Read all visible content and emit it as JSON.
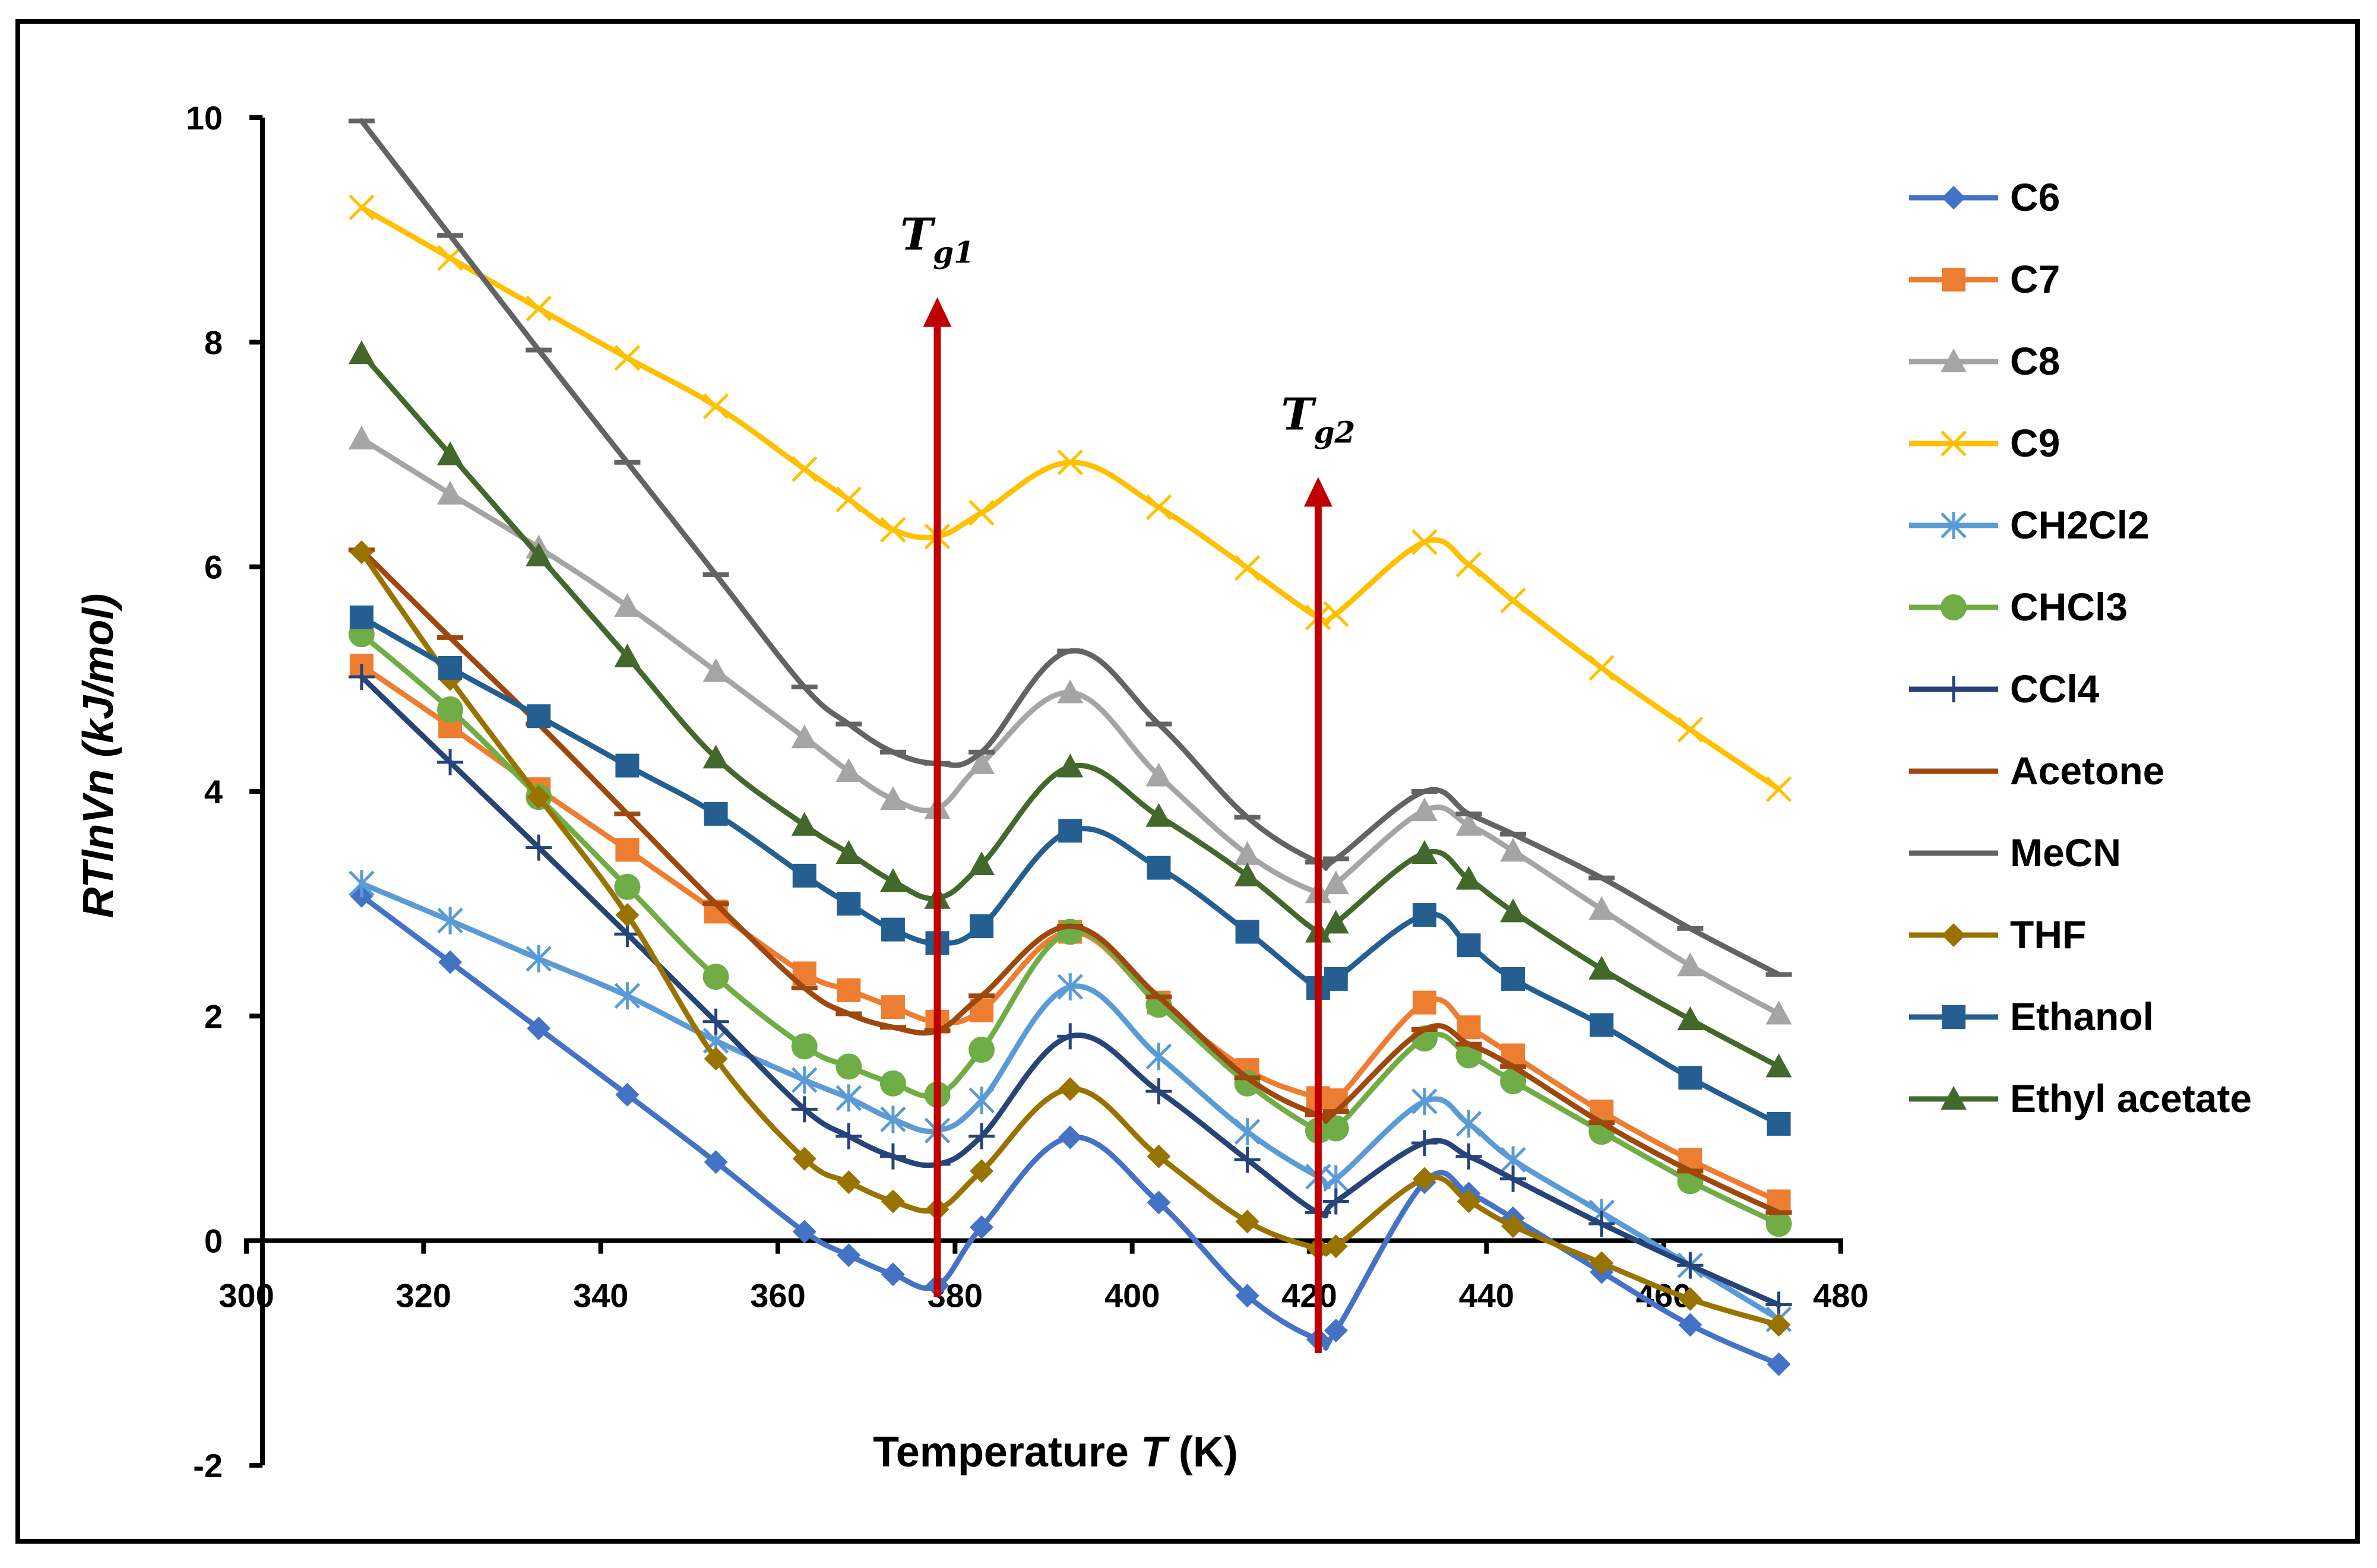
{
  "chart_data": {
    "type": "line",
    "title": "",
    "xlabel_prefix": "Temperature ",
    "xlabel_var": "T",
    "xlabel_suffix": " (K)",
    "ylabel": "RTlnVn (kJ/mol)",
    "xlim": [
      300,
      480
    ],
    "ylim": [
      -2,
      10
    ],
    "x_ticks": [
      300,
      320,
      340,
      360,
      380,
      400,
      420,
      440,
      460,
      480
    ],
    "y_ticks": [
      -2,
      0,
      2,
      4,
      6,
      8,
      10
    ],
    "grid": false,
    "legend_position": "right",
    "annotations": [
      {
        "main": "T",
        "sub": "g1",
        "x": 378,
        "arrow_from": -0.5,
        "arrow_to": 8.4
      },
      {
        "main": "T",
        "sub": "g2",
        "x": 421,
        "arrow_from": -1.0,
        "arrow_to": 6.8
      }
    ],
    "series": [
      {
        "name": "C6",
        "color": "#4472C4",
        "marker": "diamond",
        "x": [
          313,
          323,
          333,
          343,
          353,
          363,
          368,
          373,
          378,
          383,
          393,
          403,
          413,
          421,
          423,
          433,
          438,
          443,
          453,
          463,
          473
        ],
        "y": [
          3.07,
          2.48,
          1.89,
          1.3,
          0.7,
          0.08,
          -0.13,
          -0.3,
          -0.4,
          0.12,
          0.92,
          0.34,
          -0.49,
          -0.88,
          -0.8,
          0.52,
          0.42,
          0.2,
          -0.28,
          -0.75,
          -1.1
        ]
      },
      {
        "name": "C7",
        "color": "#ED7D31",
        "marker": "square",
        "x": [
          313,
          323,
          333,
          343,
          353,
          363,
          368,
          373,
          378,
          383,
          393,
          403,
          413,
          421,
          423,
          433,
          438,
          443,
          453,
          463,
          473
        ],
        "y": [
          5.12,
          4.58,
          4.02,
          3.48,
          2.93,
          2.38,
          2.23,
          2.08,
          1.95,
          2.05,
          2.75,
          2.12,
          1.52,
          1.27,
          1.25,
          2.12,
          1.9,
          1.65,
          1.15,
          0.72,
          0.35
        ]
      },
      {
        "name": "C8",
        "color": "#A5A5A5",
        "marker": "triangle",
        "x": [
          313,
          323,
          333,
          343,
          353,
          363,
          368,
          373,
          378,
          383,
          393,
          403,
          413,
          421,
          423,
          433,
          438,
          443,
          453,
          463,
          473
        ],
        "y": [
          7.14,
          6.65,
          6.17,
          5.65,
          5.07,
          4.48,
          4.18,
          3.93,
          3.85,
          4.25,
          4.88,
          4.14,
          3.44,
          3.1,
          3.18,
          3.83,
          3.7,
          3.47,
          2.95,
          2.45,
          2.02
        ]
      },
      {
        "name": "C9",
        "color": "#FFC000",
        "marker": "x",
        "x": [
          313,
          323,
          333,
          343,
          353,
          363,
          368,
          373,
          378,
          383,
          393,
          403,
          413,
          421,
          423,
          433,
          438,
          443,
          453,
          463,
          473
        ],
        "y": [
          9.2,
          8.75,
          8.3,
          7.86,
          7.43,
          6.87,
          6.6,
          6.33,
          6.27,
          6.48,
          6.93,
          6.53,
          5.99,
          5.55,
          5.58,
          6.22,
          6.02,
          5.7,
          5.1,
          4.55,
          4.02
        ]
      },
      {
        "name": "CH2Cl2",
        "color": "#5B9BD5",
        "marker": "star",
        "x": [
          313,
          323,
          333,
          343,
          353,
          363,
          368,
          373,
          378,
          383,
          393,
          403,
          413,
          421,
          423,
          433,
          438,
          443,
          453,
          463,
          473
        ],
        "y": [
          3.18,
          2.85,
          2.51,
          2.18,
          1.78,
          1.43,
          1.27,
          1.08,
          0.98,
          1.25,
          2.26,
          1.64,
          0.97,
          0.57,
          0.55,
          1.24,
          1.04,
          0.72,
          0.25,
          -0.22,
          -0.7
        ]
      },
      {
        "name": "CHCl3",
        "color": "#70AD47",
        "marker": "circle",
        "x": [
          313,
          323,
          333,
          343,
          353,
          363,
          368,
          373,
          378,
          383,
          393,
          403,
          413,
          421,
          423,
          433,
          438,
          443,
          453,
          463,
          473
        ],
        "y": [
          5.4,
          4.73,
          3.95,
          3.15,
          2.35,
          1.73,
          1.55,
          1.4,
          1.3,
          1.7,
          2.75,
          2.1,
          1.4,
          0.98,
          1.0,
          1.8,
          1.65,
          1.42,
          0.97,
          0.53,
          0.15
        ]
      },
      {
        "name": "CCl4",
        "color": "#264478",
        "marker": "plus",
        "x": [
          313,
          323,
          333,
          343,
          353,
          363,
          368,
          373,
          378,
          383,
          393,
          403,
          413,
          421,
          423,
          433,
          438,
          443,
          453,
          463,
          473
        ],
        "y": [
          5.02,
          4.26,
          3.5,
          2.73,
          1.95,
          1.17,
          0.93,
          0.75,
          0.68,
          0.93,
          1.82,
          1.33,
          0.72,
          0.25,
          0.35,
          0.87,
          0.75,
          0.55,
          0.15,
          -0.22,
          -0.57
        ]
      },
      {
        "name": "Acetone",
        "color": "#9E480E",
        "marker": "dash",
        "x": [
          313,
          323,
          333,
          343,
          353,
          363,
          368,
          373,
          378,
          383,
          393,
          403,
          413,
          421,
          423,
          433,
          438,
          443,
          453,
          463,
          473
        ],
        "y": [
          6.15,
          5.37,
          4.6,
          3.8,
          3.0,
          2.25,
          2.02,
          1.9,
          1.87,
          2.18,
          2.8,
          2.17,
          1.45,
          1.12,
          1.15,
          1.88,
          1.75,
          1.55,
          1.05,
          0.62,
          0.25
        ]
      },
      {
        "name": "MeCN",
        "color": "#636363",
        "marker": "dash",
        "x": [
          313,
          323,
          333,
          343,
          353,
          363,
          368,
          373,
          378,
          383,
          393,
          403,
          413,
          421,
          423,
          433,
          438,
          443,
          453,
          463,
          473
        ],
        "y": [
          9.97,
          8.95,
          7.93,
          6.93,
          5.93,
          4.93,
          4.6,
          4.35,
          4.25,
          4.35,
          5.25,
          4.6,
          3.77,
          3.37,
          3.4,
          4.0,
          3.8,
          3.62,
          3.23,
          2.78,
          2.37
        ]
      },
      {
        "name": "THF",
        "color": "#997300",
        "marker": "diamond",
        "x": [
          313,
          323,
          333,
          343,
          353,
          363,
          368,
          373,
          378,
          383,
          393,
          403,
          413,
          421,
          423,
          433,
          438,
          443,
          453,
          463,
          473
        ],
        "y": [
          6.13,
          5.0,
          3.95,
          2.9,
          1.62,
          0.73,
          0.52,
          0.35,
          0.28,
          0.62,
          1.35,
          0.75,
          0.17,
          -0.07,
          -0.05,
          0.55,
          0.35,
          0.13,
          -0.2,
          -0.52,
          -0.75
        ]
      },
      {
        "name": "Ethanol",
        "color": "#255E91",
        "marker": "square",
        "x": [
          313,
          323,
          333,
          343,
          353,
          363,
          368,
          373,
          378,
          383,
          393,
          403,
          413,
          421,
          423,
          433,
          438,
          443,
          453,
          463,
          473
        ],
        "y": [
          5.55,
          5.1,
          4.67,
          4.23,
          3.8,
          3.25,
          3.0,
          2.77,
          2.65,
          2.8,
          3.65,
          3.32,
          2.75,
          2.25,
          2.33,
          2.9,
          2.63,
          2.33,
          1.92,
          1.45,
          1.04
        ]
      },
      {
        "name": "Ethyl acetate",
        "color": "#43682B",
        "marker": "triangle",
        "x": [
          313,
          323,
          333,
          343,
          353,
          363,
          368,
          373,
          378,
          383,
          393,
          403,
          413,
          421,
          423,
          433,
          438,
          443,
          453,
          463,
          473
        ],
        "y": [
          7.9,
          7.0,
          6.1,
          5.2,
          4.3,
          3.7,
          3.45,
          3.2,
          3.05,
          3.35,
          4.22,
          3.78,
          3.25,
          2.75,
          2.83,
          3.45,
          3.22,
          2.93,
          2.42,
          1.97,
          1.55
        ]
      }
    ]
  }
}
